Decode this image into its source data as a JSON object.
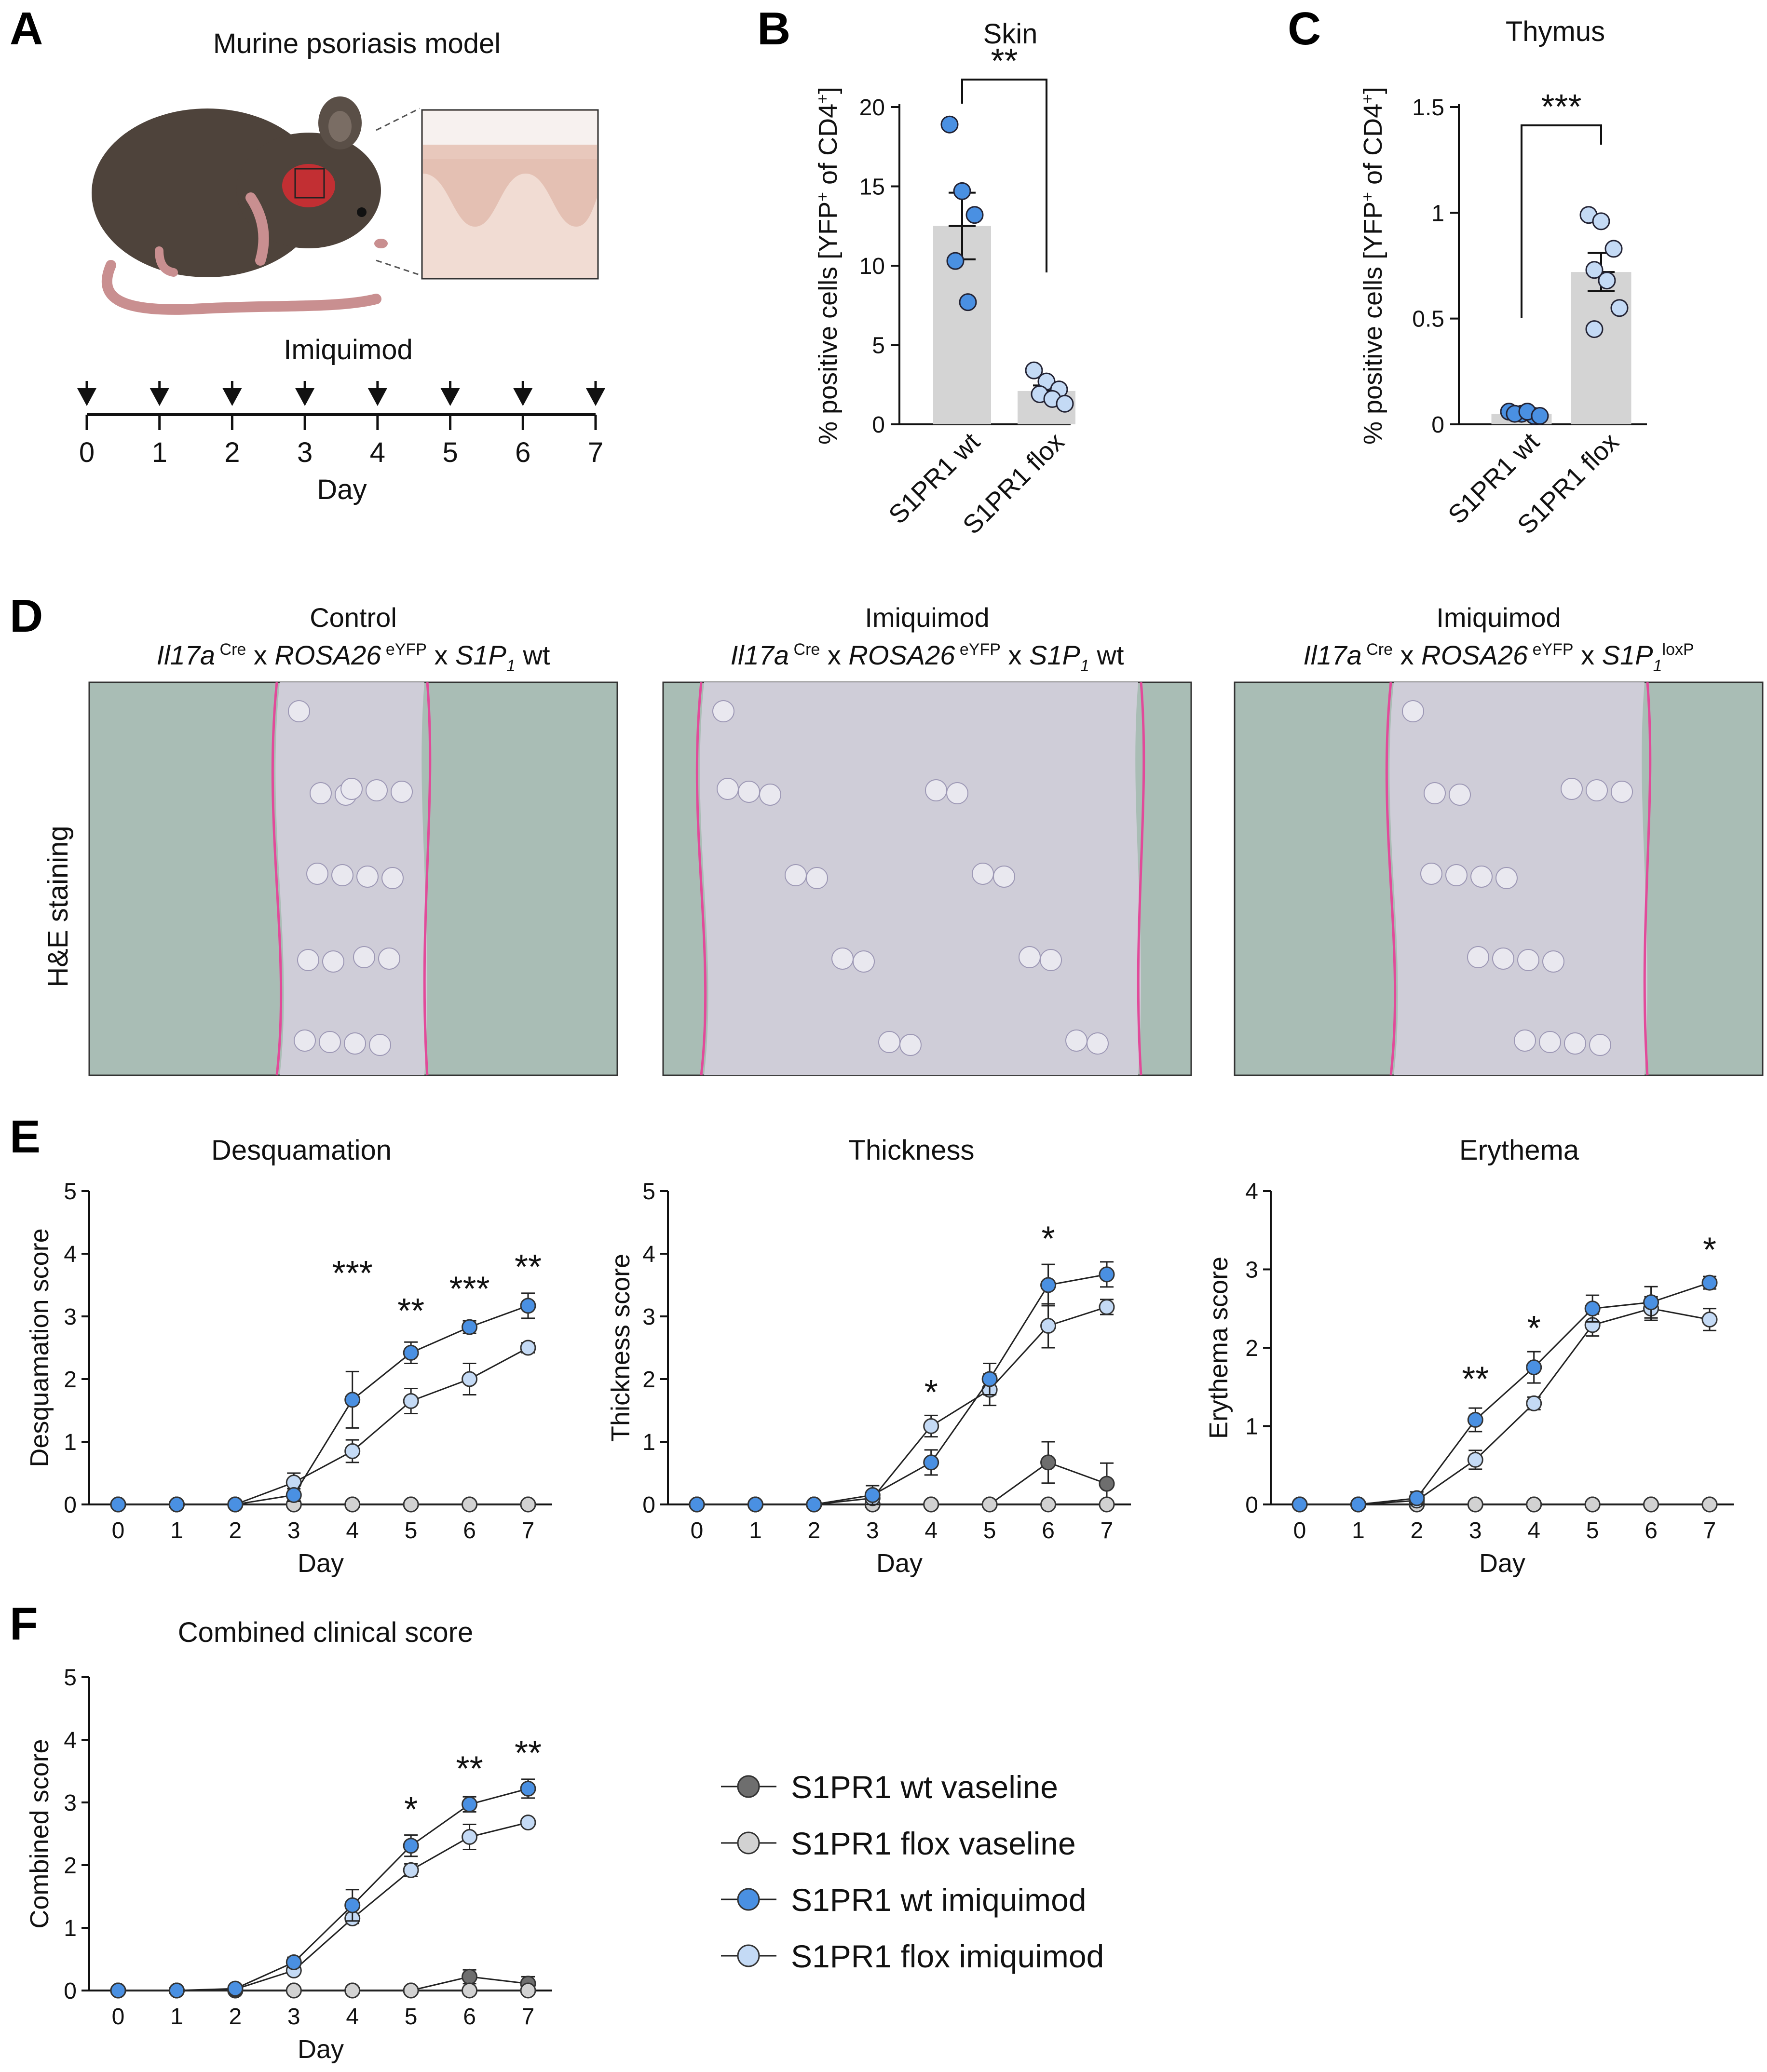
{
  "panels": {
    "A": {
      "label": "A",
      "title": "Murine psoriasis model",
      "treatment": "Imiquimod",
      "axis_label": "Day",
      "days": [
        "0",
        "1",
        "2",
        "3",
        "4",
        "5",
        "6",
        "7"
      ]
    },
    "B": {
      "label": "B"
    },
    "C": {
      "label": "C"
    },
    "D": {
      "label": "D",
      "row_label": "H&E staining",
      "images": [
        {
          "title": "Control",
          "line": [
            "Il17a",
            "Cre",
            " x ",
            "ROSA26",
            "eYFP",
            " x ",
            "S1P",
            "1",
            " wt",
            ""
          ]
        },
        {
          "title": "Imiquimod",
          "line": [
            "Il17a",
            "Cre",
            " x ",
            "ROSA26",
            "eYFP",
            " x ",
            "S1P",
            "1",
            " wt",
            ""
          ]
        },
        {
          "title": "Imiquimod",
          "line": [
            "Il17a",
            "Cre",
            " x ",
            "ROSA26",
            "eYFP",
            " x ",
            "S1P",
            "1",
            "",
            "loxP"
          ]
        }
      ],
      "colors": {
        "background": "#a9bdb5",
        "tissue": "#cfcdd8",
        "border": "#e24a9a"
      }
    },
    "E": {
      "label": "E"
    },
    "F": {
      "label": "F"
    }
  },
  "colors": {
    "wt_vaseline": "#6e6e6e",
    "flox_vaseline": "#d2d2d2",
    "wt_imiquimod": "#4a90e2",
    "flox_imiquimod": "#c4daf5",
    "bar": "#d4d4d4"
  },
  "legend": [
    {
      "key": "wt_vaseline",
      "label": "S1PR1 wt vaseline"
    },
    {
      "key": "flox_vaseline",
      "label": "S1PR1 flox vaseline"
    },
    {
      "key": "wt_imiquimod",
      "label": "S1PR1 wt imiquimod"
    },
    {
      "key": "flox_imiquimod",
      "label": "S1PR1 flox imiquimod"
    }
  ],
  "chart_data": [
    {
      "id": "B",
      "type": "bar",
      "title": "Skin",
      "ylabel": "% positive cells [YFP+ of CD4+]",
      "categories": [
        "S1PR1 wt",
        "S1PR1 flox"
      ],
      "values": [
        12.5,
        2.1
      ],
      "errors": [
        2.1,
        0.35
      ],
      "points": [
        [
          18.9,
          14.7,
          13.2,
          10.3,
          7.7
        ],
        [
          3.4,
          2.7,
          2.2,
          1.9,
          1.6,
          1.3
        ]
      ],
      "point_colors": [
        "wt_imiquimod",
        "flox_imiquimod"
      ],
      "yticks": [
        0,
        5,
        10,
        15,
        20
      ],
      "ytick_labels": [
        "0",
        "5",
        "10",
        "15",
        "20"
      ],
      "ylim": [
        0,
        20
      ],
      "significance": "**"
    },
    {
      "id": "C",
      "type": "bar",
      "title": "Thymus",
      "ylabel": "% positive cells [YFP+ of CD4+]",
      "categories": [
        "S1PR1 wt",
        "S1PR1 flox"
      ],
      "values": [
        0.05,
        0.72
      ],
      "errors": [
        0.01,
        0.09
      ],
      "points": [
        [
          0.06,
          0.05,
          0.04,
          0.05,
          0.06,
          0.04
        ],
        [
          0.99,
          0.96,
          0.83,
          0.73,
          0.68,
          0.55,
          0.45
        ]
      ],
      "point_colors": [
        "wt_imiquimod",
        "flox_imiquimod"
      ],
      "yticks": [
        0,
        0.5,
        1,
        1.5
      ],
      "ytick_labels": [
        "0",
        "0.5",
        "1",
        "1.5"
      ],
      "ylim": [
        0,
        1.5
      ],
      "significance": "***"
    },
    {
      "id": "E1",
      "type": "line",
      "title": "Desquamation",
      "xlabel": "Day",
      "ylabel": "Desquamation score",
      "x": [
        0,
        1,
        2,
        3,
        4,
        5,
        6,
        7
      ],
      "ylim": [
        0,
        5
      ],
      "yticks": [
        0,
        1,
        2,
        3,
        4,
        5
      ],
      "series": [
        {
          "key": "wt_vaseline",
          "values": [
            0,
            0,
            0,
            0,
            0,
            0,
            0,
            0
          ],
          "errors": [
            0,
            0,
            0,
            0,
            0,
            0,
            0,
            0
          ]
        },
        {
          "key": "flox_vaseline",
          "values": [
            0,
            0,
            0,
            0,
            0,
            0,
            0,
            0
          ],
          "errors": [
            0,
            0,
            0,
            0,
            0,
            0,
            0,
            0
          ]
        },
        {
          "key": "flox_imiquimod",
          "values": [
            0,
            0,
            0,
            0.35,
            0.85,
            1.65,
            2.0,
            2.5
          ],
          "errors": [
            0,
            0,
            0,
            0.15,
            0.18,
            0.2,
            0.25,
            0.08
          ]
        },
        {
          "key": "wt_imiquimod",
          "values": [
            0,
            0,
            0,
            0.15,
            1.67,
            2.42,
            2.83,
            3.17
          ],
          "errors": [
            0,
            0,
            0,
            0.1,
            0.45,
            0.17,
            0.1,
            0.2
          ]
        }
      ],
      "stars": [
        {
          "x": 4,
          "y": 3.5,
          "text": "***"
        },
        {
          "x": 5,
          "y": 2.9,
          "text": "**"
        },
        {
          "x": 6,
          "y": 3.25,
          "text": "***"
        },
        {
          "x": 7,
          "y": 3.6,
          "text": "**"
        }
      ]
    },
    {
      "id": "E2",
      "type": "line",
      "title": "Thickness",
      "xlabel": "Day",
      "ylabel": "Thickness score",
      "x": [
        0,
        1,
        2,
        3,
        4,
        5,
        6,
        7
      ],
      "ylim": [
        0,
        5
      ],
      "yticks": [
        0,
        1,
        2,
        3,
        4,
        5
      ],
      "series": [
        {
          "key": "wt_vaseline",
          "values": [
            0,
            0,
            0,
            0,
            0,
            0,
            0.67,
            0.33
          ],
          "errors": [
            0,
            0,
            0,
            0,
            0,
            0,
            0.33,
            0.33
          ]
        },
        {
          "key": "flox_vaseline",
          "values": [
            0,
            0,
            0,
            0,
            0,
            0,
            0,
            0
          ],
          "errors": [
            0,
            0,
            0,
            0,
            0,
            0,
            0,
            0
          ]
        },
        {
          "key": "flox_imiquimod",
          "values": [
            0,
            0,
            0,
            0.1,
            1.25,
            1.83,
            2.85,
            3.15
          ],
          "errors": [
            0,
            0,
            0,
            0.1,
            0.17,
            0.25,
            0.35,
            0.12
          ]
        },
        {
          "key": "wt_imiquimod",
          "values": [
            0,
            0,
            0,
            0.15,
            0.67,
            2.0,
            3.5,
            3.67
          ],
          "errors": [
            0,
            0,
            0,
            0.15,
            0.2,
            0.25,
            0.33,
            0.2
          ]
        }
      ],
      "stars": [
        {
          "x": 4,
          "y": 1.6,
          "text": "*"
        },
        {
          "x": 6,
          "y": 4.05,
          "text": "*"
        }
      ]
    },
    {
      "id": "E3",
      "type": "line",
      "title": "Erythema",
      "xlabel": "Day",
      "ylabel": "Erythema score",
      "x": [
        0,
        1,
        2,
        3,
        4,
        5,
        6,
        7
      ],
      "ylim": [
        0,
        4
      ],
      "yticks": [
        0,
        1,
        2,
        3,
        4
      ],
      "series": [
        {
          "key": "wt_vaseline",
          "values": [
            0,
            0,
            0,
            0,
            0,
            0,
            0,
            0
          ],
          "errors": [
            0,
            0,
            0,
            0,
            0,
            0,
            0,
            0
          ]
        },
        {
          "key": "flox_vaseline",
          "values": [
            0,
            0,
            0,
            0,
            0,
            0,
            0,
            0
          ],
          "errors": [
            0,
            0,
            0,
            0,
            0,
            0,
            0,
            0
          ]
        },
        {
          "key": "flox_imiquimod",
          "values": [
            0,
            0,
            0.05,
            0.57,
            1.29,
            2.29,
            2.5,
            2.36
          ],
          "errors": [
            0,
            0,
            0.05,
            0.12,
            0.08,
            0.14,
            0.15,
            0.14
          ]
        },
        {
          "key": "wt_imiquimod",
          "values": [
            0,
            0,
            0.08,
            1.08,
            1.75,
            2.5,
            2.58,
            2.83
          ],
          "errors": [
            0,
            0,
            0.08,
            0.15,
            0.2,
            0.17,
            0.2,
            0.08
          ]
        }
      ],
      "stars": [
        {
          "x": 3,
          "y": 1.45,
          "text": "**"
        },
        {
          "x": 4,
          "y": 2.1,
          "text": "*"
        },
        {
          "x": 7,
          "y": 3.1,
          "text": "*"
        }
      ]
    },
    {
      "id": "F",
      "type": "line",
      "title": "Combined clinical score",
      "xlabel": "Day",
      "ylabel": "Combined score",
      "x": [
        0,
        1,
        2,
        3,
        4,
        5,
        6,
        7
      ],
      "ylim": [
        0,
        5
      ],
      "yticks": [
        0,
        1,
        2,
        3,
        4,
        5
      ],
      "series": [
        {
          "key": "wt_vaseline",
          "values": [
            0,
            0,
            0,
            0,
            0,
            0,
            0.22,
            0.11
          ],
          "errors": [
            0,
            0,
            0,
            0,
            0,
            0,
            0.11,
            0.11
          ]
        },
        {
          "key": "flox_vaseline",
          "values": [
            0,
            0,
            0,
            0,
            0,
            0,
            0,
            0
          ],
          "errors": [
            0,
            0,
            0,
            0,
            0,
            0,
            0,
            0
          ]
        },
        {
          "key": "flox_imiquimod",
          "values": [
            0,
            0,
            0.02,
            0.32,
            1.15,
            1.92,
            2.45,
            2.68
          ],
          "errors": [
            0,
            0,
            0.02,
            0.05,
            0.08,
            0.1,
            0.2,
            0.05
          ]
        },
        {
          "key": "wt_imiquimod",
          "values": [
            0,
            0,
            0.03,
            0.45,
            1.36,
            2.31,
            2.97,
            3.22
          ],
          "errors": [
            0,
            0,
            0.03,
            0.08,
            0.25,
            0.17,
            0.12,
            0.15
          ]
        }
      ],
      "stars": [
        {
          "x": 5,
          "y": 2.7,
          "text": "*"
        },
        {
          "x": 6,
          "y": 3.35,
          "text": "**"
        },
        {
          "x": 7,
          "y": 3.6,
          "text": "**"
        }
      ]
    }
  ]
}
